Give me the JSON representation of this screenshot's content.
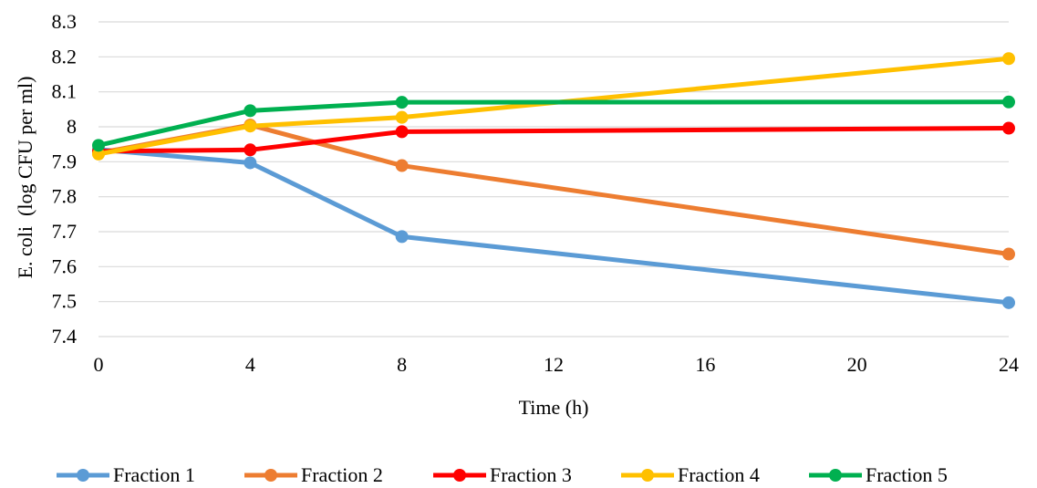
{
  "chart_data": {
    "type": "line",
    "title": "",
    "xlabel": "Time (h)",
    "ylabel": "E. coli  (log CFU per ml)",
    "x_ticks": [
      "0",
      "4",
      "8",
      "12",
      "16",
      "20",
      "24"
    ],
    "y_ticks": [
      "7.4",
      "7.5",
      "7.6",
      "7.7",
      "7.8",
      "7.9",
      "8",
      "8.1",
      "8.2",
      "8.3"
    ],
    "xlim": [
      0,
      24
    ],
    "ylim": [
      7.4,
      8.3
    ],
    "grid": "horizontal",
    "legend_position": "bottom",
    "x": [
      0,
      4,
      8,
      24
    ],
    "series": [
      {
        "name": "Fraction 1",
        "color": "#5B9BD5",
        "values": [
          7.935,
          7.897,
          7.686,
          7.497
        ]
      },
      {
        "name": "Fraction 2",
        "color": "#ED7D31",
        "values": [
          7.925,
          8.005,
          7.889,
          7.636
        ]
      },
      {
        "name": "Fraction 3",
        "color": "#FF0000",
        "values": [
          7.93,
          7.934,
          7.986,
          7.996
        ]
      },
      {
        "name": "Fraction 4",
        "color": "#FFC000",
        "values": [
          7.922,
          8.002,
          8.027,
          8.195
        ]
      },
      {
        "name": "Fraction 5",
        "color": "#00B050",
        "values": [
          7.947,
          8.046,
          8.07,
          8.071
        ]
      }
    ]
  }
}
